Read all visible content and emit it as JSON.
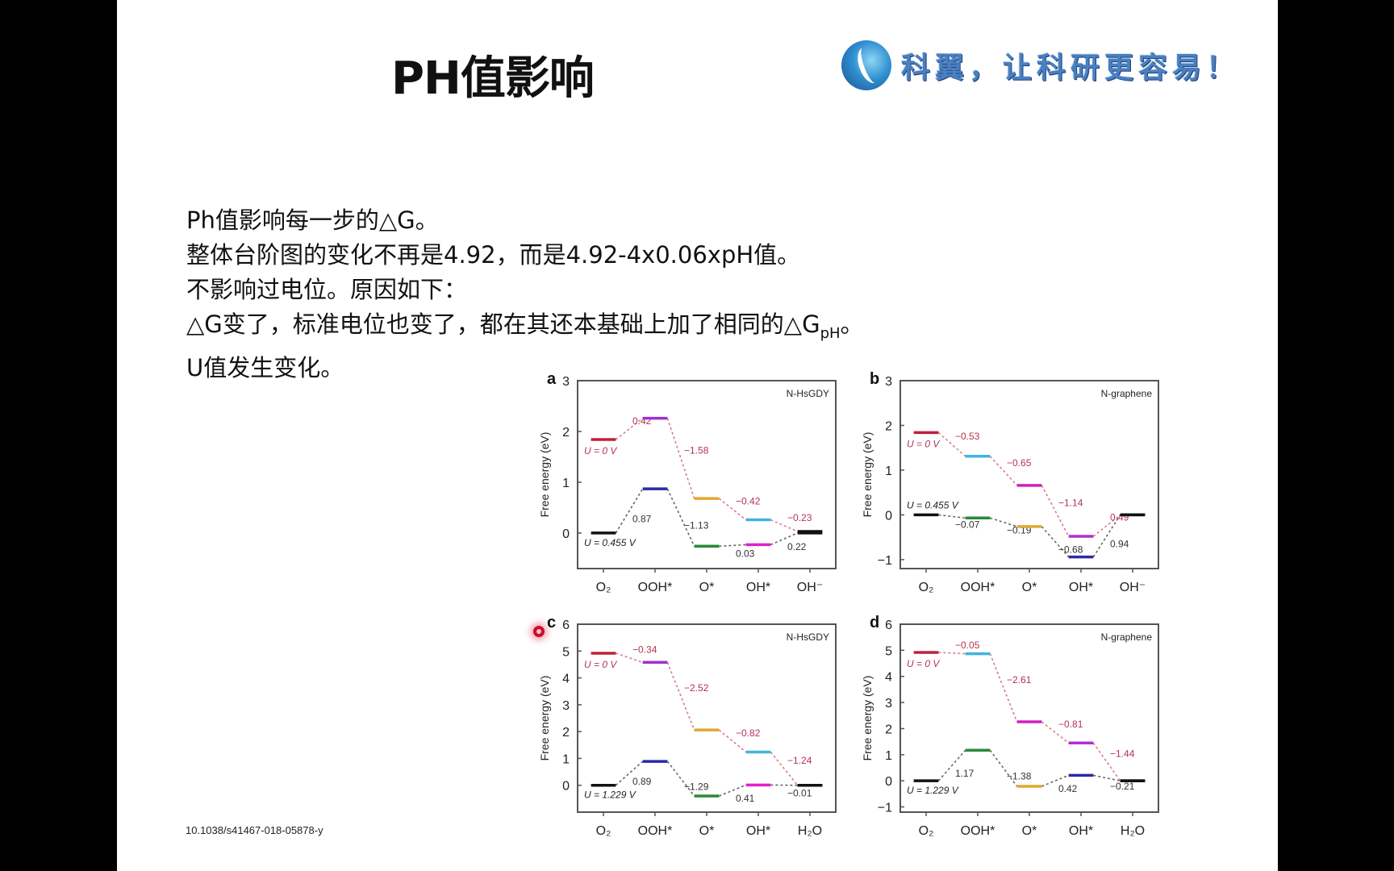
{
  "slide": {
    "title": "PH值影响",
    "logo_text": "科翼，让科研更容易！",
    "lines": [
      "Ph值影响每一步的△G。",
      "整体台阶图的变化不再是4.92，而是4.92-4x0.06xpH值。",
      "不影响过电位。原因如下：",
      "△G变了，标准电位也变了，都在其还本基础上加了相同的△G",
      "U值发生变化。"
    ],
    "line4_sub": "pH",
    "line4_end": "。",
    "doi": "10.1038/s41467-018-05878-y"
  },
  "chart_data": [
    {
      "panel": "a",
      "type": "line",
      "material": "N-HsGDY",
      "ylabel": "Free energy (eV)",
      "ylim": [
        -0.7,
        3
      ],
      "yticks": [
        0,
        1,
        2,
        3
      ],
      "categories": [
        "O₂",
        "OOH*",
        "O*",
        "OH*",
        "OH⁻"
      ],
      "series": [
        {
          "name": "U = 0 V",
          "values": [
            1.84,
            2.26,
            0.68,
            0.26,
            0.03
          ],
          "colors": [
            "#c0203a",
            "#a030d0",
            "#e0a830",
            "#40b4e0",
            "#111111"
          ],
          "step_labels": [
            "0.42",
            "−1.58",
            "−0.42",
            "−0.23"
          ],
          "label_color": "#b5334f",
          "connector": "#d77a8e"
        },
        {
          "name": "U = 0.455 V",
          "values": [
            0,
            0.87,
            -0.26,
            -0.23,
            0
          ],
          "colors": [
            "#111111",
            "#2a2aa8",
            "#2a8a3a",
            "#e020c8",
            "#111111"
          ],
          "step_labels": [
            "0.87",
            "−1.13",
            "0.03",
            "0.22"
          ],
          "label_color": "#333333",
          "connector": "#666666"
        }
      ]
    },
    {
      "panel": "b",
      "type": "line",
      "material": "N-graphene",
      "ylabel": "Free energy (eV)",
      "ylim": [
        -1.2,
        3
      ],
      "yticks": [
        -1,
        0,
        1,
        2,
        3
      ],
      "categories": [
        "O₂",
        "OOH*",
        "O*",
        "OH*",
        "OH⁻"
      ],
      "series": [
        {
          "name": "U = 0 V",
          "values": [
            1.84,
            1.31,
            0.66,
            -0.48,
            0
          ],
          "colors": [
            "#c0203a",
            "#40b4e0",
            "#d020c0",
            "#b030d0",
            "#111111"
          ],
          "step_labels": [
            "−0.53",
            "−0.65",
            "−1.14",
            "0.49"
          ],
          "label_color": "#b5334f",
          "connector": "#d77a8e"
        },
        {
          "name": "U = 0.455 V",
          "values": [
            0,
            -0.07,
            -0.26,
            -0.94,
            0
          ],
          "colors": [
            "#111111",
            "#2a8a3a",
            "#e0a830",
            "#2a2aa8",
            "#111111"
          ],
          "step_labels": [
            "−0.07",
            "−0.19",
            "−0.68",
            "0.94"
          ],
          "label_color": "#333333",
          "connector": "#666666"
        }
      ]
    },
    {
      "panel": "c",
      "type": "line",
      "material": "N-HsGDY",
      "ylabel": "Free energy (eV)",
      "ylim": [
        -1,
        6
      ],
      "yticks": [
        0,
        1,
        2,
        3,
        4,
        5,
        6
      ],
      "categories": [
        "O₂",
        "OOH*",
        "O*",
        "OH*",
        "H₂O"
      ],
      "series": [
        {
          "name": "U = 0 V",
          "values": [
            4.92,
            4.58,
            2.06,
            1.24,
            0
          ],
          "colors": [
            "#c0203a",
            "#a030d0",
            "#e0a830",
            "#40b4e0",
            "#111111"
          ],
          "step_labels": [
            "−0.34",
            "−2.52",
            "−0.82",
            "−1.24"
          ],
          "label_color": "#b5334f",
          "connector": "#d77a8e"
        },
        {
          "name": "U = 1.229 V",
          "values": [
            0,
            0.89,
            -0.4,
            0.01,
            0
          ],
          "colors": [
            "#111111",
            "#2a2aa8",
            "#2a8a3a",
            "#e020c8",
            "#111111"
          ],
          "step_labels": [
            "0.89",
            "−1.29",
            "0.41",
            "−0.01"
          ],
          "label_color": "#333333",
          "connector": "#666666"
        }
      ]
    },
    {
      "panel": "d",
      "type": "line",
      "material": "N-graphene",
      "ylabel": "Free energy (eV)",
      "ylim": [
        -1.2,
        6
      ],
      "yticks": [
        -1,
        0,
        1,
        2,
        3,
        4,
        5,
        6
      ],
      "categories": [
        "O₂",
        "OOH*",
        "O*",
        "OH*",
        "H₂O"
      ],
      "series": [
        {
          "name": "U = 0 V",
          "values": [
            4.92,
            4.87,
            2.26,
            1.45,
            0
          ],
          "colors": [
            "#c0203a",
            "#40b4e0",
            "#d020c0",
            "#b030d0",
            "#111111"
          ],
          "step_labels": [
            "−0.05",
            "−2.61",
            "−0.81",
            "−1.44"
          ],
          "label_color": "#b5334f",
          "connector": "#d77a8e"
        },
        {
          "name": "U = 1.229 V",
          "values": [
            0,
            1.17,
            -0.21,
            0.21,
            0
          ],
          "colors": [
            "#111111",
            "#2a8a3a",
            "#e0a830",
            "#2a2aa8",
            "#111111"
          ],
          "step_labels": [
            "1.17",
            "−1.38",
            "0.42",
            "−0.21"
          ],
          "label_color": "#333333",
          "connector": "#666666"
        }
      ]
    }
  ]
}
